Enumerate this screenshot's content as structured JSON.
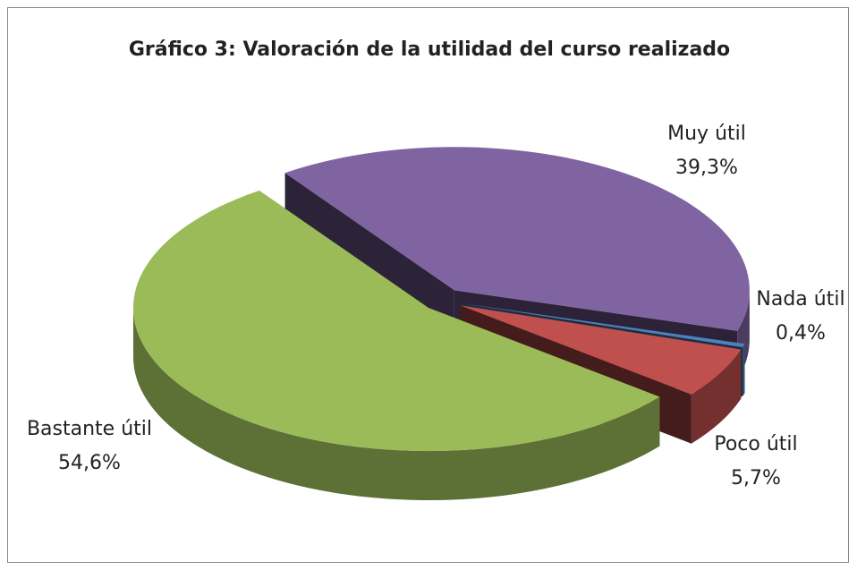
{
  "chart_data": {
    "type": "pie3d",
    "title": "Gráfico 3: Valoración de la utilidad del curso realizado",
    "categories": [
      "Muy útil",
      "Nada útil",
      "Poco útil",
      "Bastante útil"
    ],
    "values": [
      39.3,
      0.4,
      5.7,
      54.6
    ],
    "value_labels": [
      "39,3%",
      "0,4%",
      "5,7%",
      "54,6%"
    ],
    "colors": [
      "#8064a2",
      "#4f81bd",
      "#c0504d",
      "#9bbb59"
    ]
  }
}
